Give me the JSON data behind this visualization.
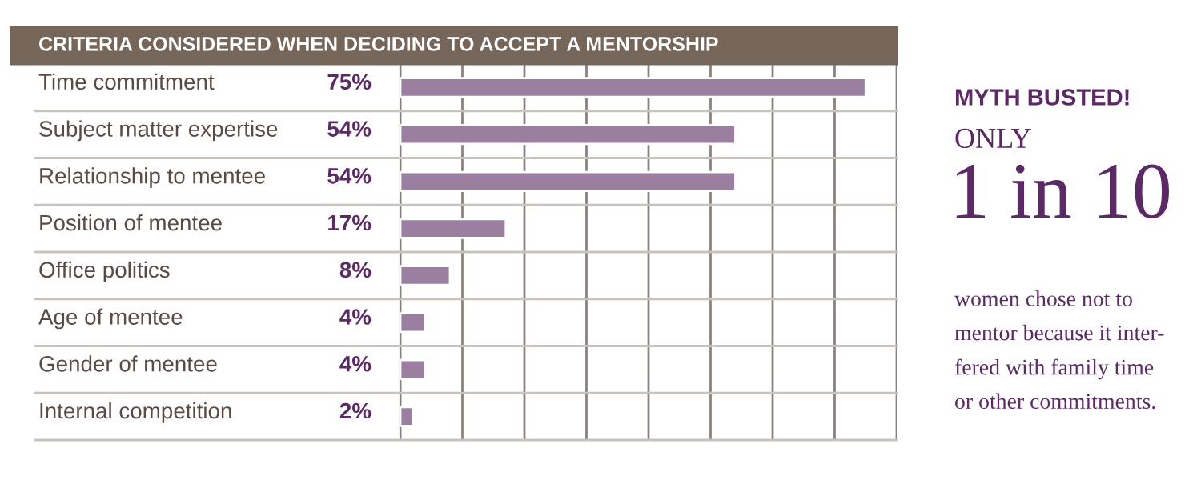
{
  "chart_data": {
    "type": "bar",
    "orientation": "horizontal",
    "title": "CRITERIA CONSIDERED WHEN DECIDING TO ACCEPT A MENTORSHIP",
    "categories": [
      "Time commitment",
      "Subject matter expertise",
      "Relationship to mentee",
      "Position of mentee",
      "Office politics",
      "Age of mentee",
      "Gender of mentee",
      "Internal competition"
    ],
    "values": [
      75,
      54,
      54,
      17,
      8,
      4,
      4,
      2
    ],
    "value_labels": [
      "75%",
      "54%",
      "54%",
      "17%",
      "8%",
      "4%",
      "4%",
      "2%"
    ],
    "color": "#9a7fa0",
    "xlim": [
      0,
      80
    ],
    "xticks": [
      {
        "value": 0,
        "label": null
      },
      {
        "value": 10,
        "label": null
      },
      {
        "value": 20,
        "label": null
      },
      {
        "value": 30,
        "label": null
      },
      {
        "value": 40,
        "label": null
      },
      {
        "value": 50,
        "label": null
      },
      {
        "value": 60,
        "label": null
      },
      {
        "value": 70,
        "label": null
      },
      {
        "value": 80,
        "label": null
      }
    ],
    "grid": "x",
    "annotations": [
      "MYTH BUSTED!",
      "ONLY",
      "1 in 10",
      "women chose not to\nmentor because it inter-\nfered with family time\nor other commitments."
    ]
  }
}
